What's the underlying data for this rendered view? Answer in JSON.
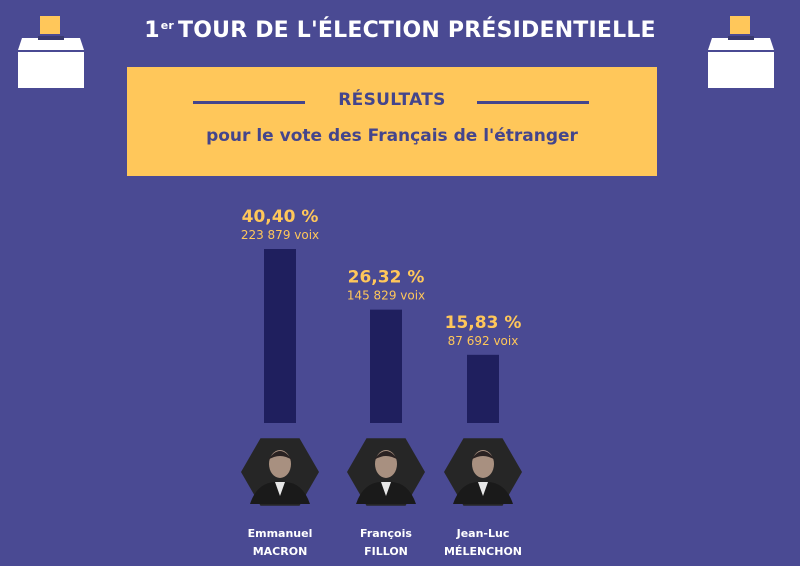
{
  "header": {
    "title_prefix": "1",
    "title_sup": "er",
    "title": "TOUR DE L'ÉLECTION PRÉSIDENTIELLE"
  },
  "banner": {
    "heading": "RÉSULTATS",
    "subheading": "pour le vote des Français de l'étranger"
  },
  "colors": {
    "background": "#4a4a93",
    "banner": "#ffc75a",
    "bar": "#1f1f5e",
    "accent_text": "#ffc75a"
  },
  "chart_data": {
    "type": "bar",
    "categories": [
      "Emmanuel MACRON",
      "François FILLON",
      "Jean-Luc MÉLENCHON"
    ],
    "values": [
      40.4,
      26.32,
      15.83
    ],
    "value_labels": [
      "40,40 %",
      "26,32 %",
      "15,83 %"
    ],
    "votes": [
      223879,
      145829,
      87692
    ],
    "votes_labels": [
      "223 879 voix",
      "145 829 voix",
      "87 692 voix"
    ],
    "first_names": [
      "Emmanuel",
      "François",
      "Jean-Luc"
    ],
    "last_names": [
      "MACRON",
      "FILLON",
      "MÉLENCHON"
    ],
    "title": "",
    "xlabel": "",
    "ylabel": "",
    "ylim": [
      0,
      45
    ],
    "grid": false
  }
}
